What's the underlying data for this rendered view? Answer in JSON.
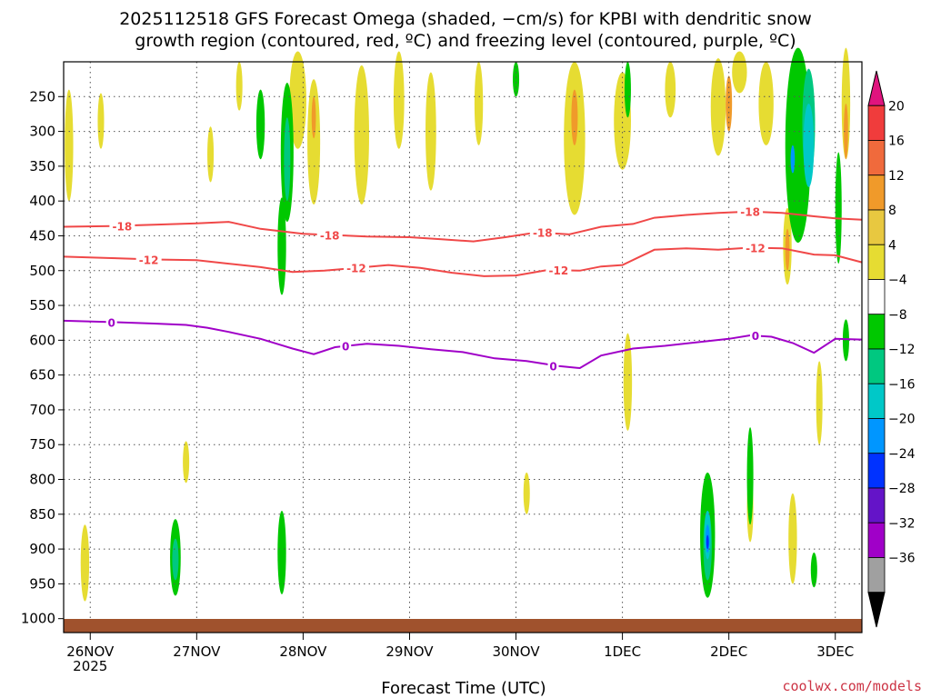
{
  "chart_data": {
    "type": "heatmap",
    "title_lines": [
      "2025112518 GFS Forecast Omega (shaded, −cm/s) for KPBI with dendritic snow",
      "growth region (contoured, red, ºC) and freezing level (contoured, purple, ºC)"
    ],
    "xlabel": "Forecast Time (UTC)",
    "credit": "coolwx.com/models",
    "x_ticks": [
      {
        "label": "26NOV",
        "sub": "2025",
        "t": 0
      },
      {
        "label": "27NOV",
        "sub": "",
        "t": 1
      },
      {
        "label": "28NOV",
        "sub": "",
        "t": 2
      },
      {
        "label": "29NOV",
        "sub": "",
        "t": 3
      },
      {
        "label": "30NOV",
        "sub": "",
        "t": 4
      },
      {
        "label": "1DEC",
        "sub": "",
        "t": 5
      },
      {
        "label": "2DEC",
        "sub": "",
        "t": 6
      },
      {
        "label": "3DEC",
        "sub": "",
        "t": 7
      }
    ],
    "x_range": [
      -0.25,
      7.25
    ],
    "y_levels": [
      250,
      300,
      350,
      400,
      450,
      500,
      550,
      600,
      650,
      700,
      750,
      800,
      850,
      900,
      950,
      1000
    ],
    "y_range": [
      200,
      1020
    ],
    "colorbar": {
      "tick_labels": [
        "20",
        "16",
        "12",
        "8",
        "4",
        "−4",
        "−8",
        "−12",
        "−16",
        "−20",
        "−24",
        "−28",
        "−32",
        "−36"
      ],
      "colors": [
        "#e0147e",
        "#f03c3c",
        "#f06a3c",
        "#f09a2a",
        "#e8c840",
        "#e6dc32",
        "#ffffff",
        "#00c800",
        "#00c880",
        "#00c8c8",
        "#0096ff",
        "#0032ff",
        "#6414c8",
        "#a000c8",
        "#a0a0a0",
        "#000000"
      ]
    },
    "contours": [
      {
        "label": "-18",
        "color": "#f04848",
        "points": [
          [
            -0.25,
            437
          ],
          [
            0.2,
            436
          ],
          [
            0.6,
            434
          ],
          [
            1.0,
            432
          ],
          [
            1.3,
            430
          ],
          [
            1.6,
            440
          ],
          [
            2.0,
            447
          ],
          [
            2.3,
            449
          ],
          [
            2.6,
            451
          ],
          [
            3.0,
            452
          ],
          [
            3.3,
            455
          ],
          [
            3.6,
            458
          ],
          [
            3.9,
            452
          ],
          [
            4.2,
            445
          ],
          [
            4.5,
            448
          ],
          [
            4.8,
            437
          ],
          [
            5.1,
            433
          ],
          [
            5.3,
            424
          ],
          [
            5.6,
            420
          ],
          [
            5.9,
            417
          ],
          [
            6.2,
            415
          ],
          [
            6.5,
            417
          ],
          [
            6.8,
            422
          ],
          [
            7.0,
            425
          ],
          [
            7.25,
            427
          ]
        ],
        "labels_at": [
          [
            0.3,
            436
          ],
          [
            2.25,
            449
          ],
          [
            4.25,
            445
          ],
          [
            6.2,
            415
          ]
        ]
      },
      {
        "label": "-12",
        "color": "#f04848",
        "points": [
          [
            -0.25,
            480
          ],
          [
            0.2,
            482
          ],
          [
            0.6,
            484
          ],
          [
            1.0,
            485
          ],
          [
            1.3,
            490
          ],
          [
            1.6,
            495
          ],
          [
            1.9,
            502
          ],
          [
            2.2,
            500
          ],
          [
            2.5,
            496
          ],
          [
            2.8,
            492
          ],
          [
            3.1,
            496
          ],
          [
            3.4,
            503
          ],
          [
            3.7,
            508
          ],
          [
            4.0,
            507
          ],
          [
            4.3,
            499
          ],
          [
            4.6,
            500
          ],
          [
            4.8,
            494
          ],
          [
            5.0,
            492
          ],
          [
            5.3,
            470
          ],
          [
            5.6,
            468
          ],
          [
            5.9,
            470
          ],
          [
            6.2,
            467
          ],
          [
            6.5,
            468
          ],
          [
            6.8,
            477
          ],
          [
            7.0,
            478
          ],
          [
            7.25,
            488
          ]
        ],
        "labels_at": [
          [
            0.55,
            484
          ],
          [
            2.5,
            496
          ],
          [
            4.4,
            499
          ],
          [
            6.25,
            467
          ]
        ]
      },
      {
        "label": "0",
        "color": "#a000c8",
        "points": [
          [
            -0.25,
            572
          ],
          [
            0.2,
            574
          ],
          [
            0.6,
            576
          ],
          [
            0.9,
            578
          ],
          [
            1.1,
            582
          ],
          [
            1.3,
            588
          ],
          [
            1.6,
            598
          ],
          [
            1.9,
            612
          ],
          [
            2.1,
            620
          ],
          [
            2.3,
            610
          ],
          [
            2.6,
            605
          ],
          [
            2.9,
            608
          ],
          [
            3.2,
            613
          ],
          [
            3.5,
            617
          ],
          [
            3.8,
            626
          ],
          [
            4.1,
            630
          ],
          [
            4.4,
            637
          ],
          [
            4.6,
            640
          ],
          [
            4.8,
            622
          ],
          [
            5.1,
            612
          ],
          [
            5.4,
            608
          ],
          [
            5.7,
            603
          ],
          [
            6.0,
            598
          ],
          [
            6.2,
            593
          ],
          [
            6.4,
            595
          ],
          [
            6.6,
            604
          ],
          [
            6.8,
            618
          ],
          [
            7.0,
            598
          ],
          [
            7.25,
            599
          ]
        ],
        "labels_at": [
          [
            0.2,
            574
          ],
          [
            2.4,
            608
          ],
          [
            4.35,
            637
          ],
          [
            6.25,
            593
          ]
        ]
      }
    ],
    "shaded_regions": [
      {
        "color": "#e6dc32",
        "cx": -0.2,
        "cy": 320,
        "rx": 0.04,
        "ry": 80
      },
      {
        "color": "#e6dc32",
        "cx": 0.1,
        "cy": 285,
        "rx": 0.03,
        "ry": 40
      },
      {
        "color": "#e6dc32",
        "cx": 1.13,
        "cy": 333,
        "rx": 0.03,
        "ry": 40
      },
      {
        "color": "#e6dc32",
        "cx": 1.4,
        "cy": 235,
        "rx": 0.03,
        "ry": 35
      },
      {
        "color": "#e6dc32",
        "cx": 1.95,
        "cy": 255,
        "rx": 0.08,
        "ry": 70
      },
      {
        "color": "#e6dc32",
        "cx": 2.1,
        "cy": 315,
        "rx": 0.06,
        "ry": 90
      },
      {
        "color": "#e6dc32",
        "cx": 2.55,
        "cy": 305,
        "rx": 0.07,
        "ry": 100
      },
      {
        "color": "#e6dc32",
        "cx": 2.9,
        "cy": 255,
        "rx": 0.05,
        "ry": 70
      },
      {
        "color": "#e6dc32",
        "cx": 3.2,
        "cy": 300,
        "rx": 0.05,
        "ry": 85
      },
      {
        "color": "#e6dc32",
        "cx": 3.65,
        "cy": 260,
        "rx": 0.04,
        "ry": 60
      },
      {
        "color": "#e6dc32",
        "cx": 4.55,
        "cy": 310,
        "rx": 0.1,
        "ry": 110
      },
      {
        "color": "#e6dc32",
        "cx": 5.0,
        "cy": 285,
        "rx": 0.08,
        "ry": 70
      },
      {
        "color": "#e6dc32",
        "cx": 5.45,
        "cy": 240,
        "rx": 0.05,
        "ry": 40
      },
      {
        "color": "#e6dc32",
        "cx": 5.9,
        "cy": 265,
        "rx": 0.07,
        "ry": 70
      },
      {
        "color": "#e6dc32",
        "cx": 6.1,
        "cy": 215,
        "rx": 0.07,
        "ry": 30
      },
      {
        "color": "#e6dc32",
        "cx": 6.35,
        "cy": 260,
        "rx": 0.07,
        "ry": 60
      },
      {
        "color": "#e6dc32",
        "cx": 6.55,
        "cy": 465,
        "rx": 0.04,
        "ry": 55
      },
      {
        "color": "#e6dc32",
        "cx": 7.1,
        "cy": 260,
        "rx": 0.04,
        "ry": 80
      },
      {
        "color": "#e6dc32",
        "cx": 5.05,
        "cy": 660,
        "rx": 0.04,
        "ry": 70
      },
      {
        "color": "#e6dc32",
        "cx": 6.6,
        "cy": 885,
        "rx": 0.04,
        "ry": 65
      },
      {
        "color": "#e6dc32",
        "cx": 6.85,
        "cy": 690,
        "rx": 0.03,
        "ry": 60
      },
      {
        "color": "#e6dc32",
        "cx": -0.05,
        "cy": 920,
        "rx": 0.04,
        "ry": 55
      },
      {
        "color": "#e6dc32",
        "cx": 0.9,
        "cy": 775,
        "rx": 0.03,
        "ry": 30
      },
      {
        "color": "#e6dc32",
        "cx": 4.1,
        "cy": 820,
        "rx": 0.03,
        "ry": 30
      },
      {
        "color": "#e6dc32",
        "cx": 6.2,
        "cy": 840,
        "rx": 0.03,
        "ry": 50
      },
      {
        "color": "#f09a2a",
        "cx": 2.1,
        "cy": 280,
        "rx": 0.02,
        "ry": 30
      },
      {
        "color": "#f09a2a",
        "cx": 4.55,
        "cy": 280,
        "rx": 0.03,
        "ry": 40
      },
      {
        "color": "#f09a2a",
        "cx": 6.0,
        "cy": 260,
        "rx": 0.03,
        "ry": 40
      },
      {
        "color": "#f09a2a",
        "cx": 6.55,
        "cy": 470,
        "rx": 0.02,
        "ry": 30
      },
      {
        "color": "#f09a2a",
        "cx": 7.1,
        "cy": 300,
        "rx": 0.02,
        "ry": 40
      },
      {
        "color": "#00c800",
        "cx": 1.6,
        "cy": 290,
        "rx": 0.04,
        "ry": 50
      },
      {
        "color": "#00c800",
        "cx": 1.85,
        "cy": 330,
        "rx": 0.06,
        "ry": 100
      },
      {
        "color": "#00c800",
        "cx": 1.8,
        "cy": 465,
        "rx": 0.04,
        "ry": 70
      },
      {
        "color": "#00c800",
        "cx": 4.0,
        "cy": 225,
        "rx": 0.03,
        "ry": 25
      },
      {
        "color": "#00c800",
        "cx": 5.05,
        "cy": 240,
        "rx": 0.03,
        "ry": 40
      },
      {
        "color": "#00c800",
        "cx": 6.65,
        "cy": 320,
        "rx": 0.12,
        "ry": 140
      },
      {
        "color": "#00c800",
        "cx": 7.03,
        "cy": 410,
        "rx": 0.03,
        "ry": 80
      },
      {
        "color": "#00c800",
        "cx": 7.1,
        "cy": 600,
        "rx": 0.03,
        "ry": 30
      },
      {
        "color": "#00c800",
        "cx": 0.8,
        "cy": 912,
        "rx": 0.05,
        "ry": 55
      },
      {
        "color": "#00c800",
        "cx": 1.8,
        "cy": 905,
        "rx": 0.04,
        "ry": 60
      },
      {
        "color": "#00c800",
        "cx": 5.8,
        "cy": 880,
        "rx": 0.07,
        "ry": 90
      },
      {
        "color": "#00c800",
        "cx": 6.2,
        "cy": 795,
        "rx": 0.03,
        "ry": 70
      },
      {
        "color": "#00c800",
        "cx": 6.8,
        "cy": 930,
        "rx": 0.03,
        "ry": 25
      },
      {
        "color": "#00c880",
        "cx": 1.85,
        "cy": 340,
        "rx": 0.03,
        "ry": 60
      },
      {
        "color": "#00c880",
        "cx": 6.75,
        "cy": 290,
        "rx": 0.06,
        "ry": 80
      },
      {
        "color": "#00c880",
        "cx": 0.8,
        "cy": 915,
        "rx": 0.03,
        "ry": 30
      },
      {
        "color": "#00c880",
        "cx": 5.8,
        "cy": 895,
        "rx": 0.04,
        "ry": 50
      },
      {
        "color": "#00c8c8",
        "cx": 6.75,
        "cy": 320,
        "rx": 0.05,
        "ry": 60
      },
      {
        "color": "#00c8c8",
        "cx": 5.8,
        "cy": 880,
        "rx": 0.03,
        "ry": 35
      },
      {
        "color": "#0096ff",
        "cx": 6.6,
        "cy": 340,
        "rx": 0.02,
        "ry": 20
      },
      {
        "color": "#0096ff",
        "cx": 5.8,
        "cy": 885,
        "rx": 0.02,
        "ry": 20
      },
      {
        "color": "#0032ff",
        "cx": 5.8,
        "cy": 890,
        "rx": 0.012,
        "ry": 10
      }
    ]
  }
}
